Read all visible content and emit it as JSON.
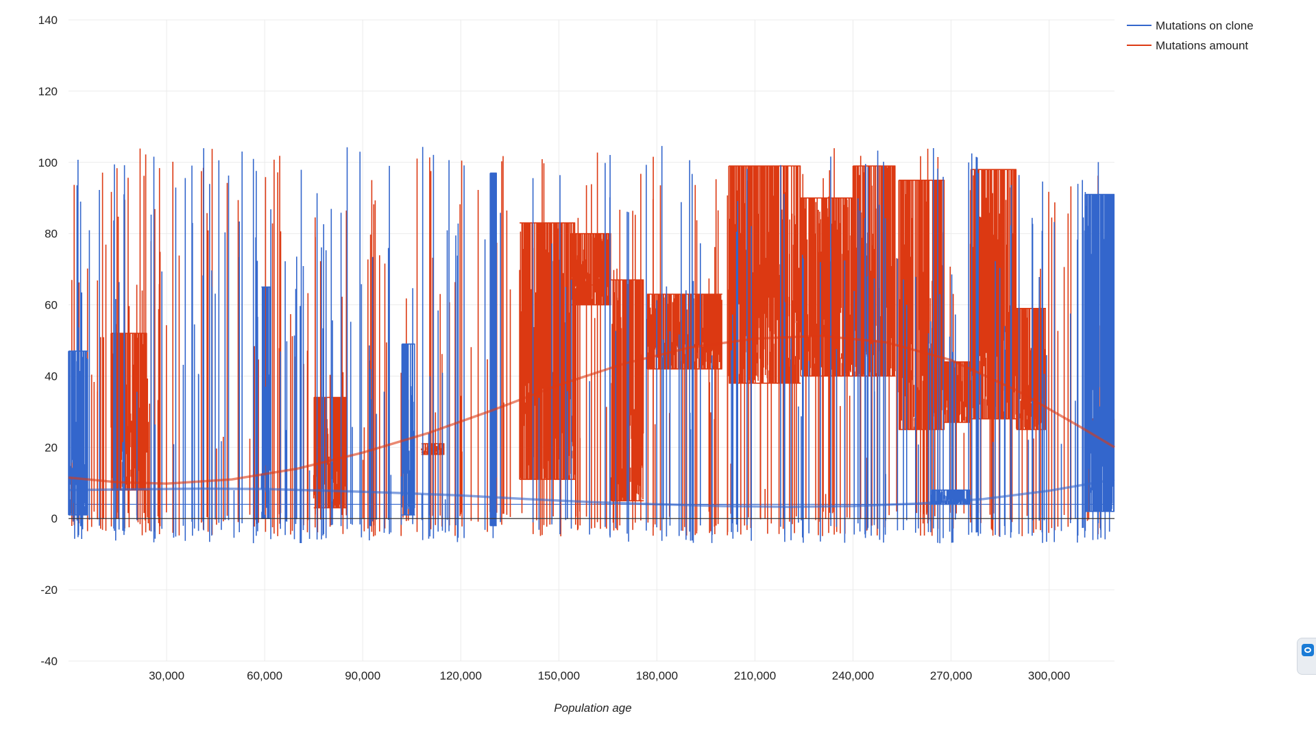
{
  "chart_data": {
    "type": "line",
    "title": "",
    "xlabel": "Population age",
    "ylabel": "",
    "xlim": [
      0,
      320000
    ],
    "ylim": [
      -40,
      140
    ],
    "x_ticks": [
      30000,
      60000,
      90000,
      120000,
      150000,
      180000,
      210000,
      240000,
      270000,
      300000
    ],
    "x_tick_labels": [
      "30,000",
      "60,000",
      "90,000",
      "120,000",
      "150,000",
      "180,000",
      "210,000",
      "240,000",
      "270,000",
      "300,000"
    ],
    "y_ticks": [
      140,
      120,
      100,
      80,
      60,
      40,
      20,
      0,
      -20,
      -40
    ],
    "y_tick_labels": [
      "140",
      "120",
      "100",
      "80",
      "60",
      "40",
      "20",
      "0",
      "-20",
      "-40"
    ],
    "grid": true,
    "legend_position": "top-right",
    "series": [
      {
        "name": "Mutations on clone",
        "color": "#3366cc",
        "baseline": 4,
        "spike_range": [
          -7,
          105
        ],
        "dense_blocks": [
          {
            "x_start": 0,
            "x_end": 6000,
            "low": 1,
            "high": 47
          },
          {
            "x_start": 59000,
            "x_end": 62000,
            "low": 0,
            "high": 65
          },
          {
            "x_start": 102000,
            "x_end": 106000,
            "low": 1,
            "high": 49
          },
          {
            "x_start": 129000,
            "x_end": 131000,
            "low": -2,
            "high": 97
          },
          {
            "x_start": 264000,
            "x_end": 276000,
            "low": 4,
            "high": 8
          },
          {
            "x_start": 311000,
            "x_end": 320000,
            "low": 2,
            "high": 91
          }
        ],
        "trend": [
          [
            0,
            8
          ],
          [
            20000,
            8.2
          ],
          [
            40000,
            8.4
          ],
          [
            60000,
            8.3
          ],
          [
            80000,
            7.8
          ],
          [
            100000,
            7.2
          ],
          [
            120000,
            6.5
          ],
          [
            140000,
            5.5
          ],
          [
            160000,
            4.6
          ],
          [
            180000,
            4
          ],
          [
            200000,
            3.5
          ],
          [
            220000,
            3.3
          ],
          [
            240000,
            3.5
          ],
          [
            260000,
            4.2
          ],
          [
            280000,
            5.5
          ],
          [
            300000,
            7.8
          ],
          [
            320000,
            11
          ]
        ]
      },
      {
        "name": "Mutations amount",
        "color": "#dc3912",
        "spike_range": [
          -5,
          104
        ],
        "dense_blocks": [
          {
            "x_start": 13000,
            "x_end": 24000,
            "low": 8,
            "high": 52
          },
          {
            "x_start": 75000,
            "x_end": 85000,
            "low": 3,
            "high": 34
          },
          {
            "x_start": 108000,
            "x_end": 115000,
            "low": 18,
            "high": 21
          },
          {
            "x_start": 138000,
            "x_end": 155000,
            "low": 11,
            "high": 83
          },
          {
            "x_start": 154000,
            "x_end": 166000,
            "low": 60,
            "high": 80
          },
          {
            "x_start": 166000,
            "x_end": 176000,
            "low": 5,
            "high": 67
          },
          {
            "x_start": 177000,
            "x_end": 200000,
            "low": 42,
            "high": 63
          },
          {
            "x_start": 202000,
            "x_end": 224000,
            "low": 38,
            "high": 99
          },
          {
            "x_start": 224000,
            "x_end": 240000,
            "low": 40,
            "high": 90
          },
          {
            "x_start": 240000,
            "x_end": 253000,
            "low": 40,
            "high": 99
          },
          {
            "x_start": 254000,
            "x_end": 268000,
            "low": 25,
            "high": 95
          },
          {
            "x_start": 268000,
            "x_end": 276000,
            "low": 27,
            "high": 44
          },
          {
            "x_start": 276000,
            "x_end": 290000,
            "low": 28,
            "high": 98
          },
          {
            "x_start": 290000,
            "x_end": 299000,
            "low": 25,
            "high": 59
          },
          {
            "x_start": 313000,
            "x_end": 320000,
            "low": 20,
            "high": 28
          }
        ],
        "trend": [
          [
            0,
            11.5
          ],
          [
            15000,
            10.2
          ],
          [
            30000,
            9.8
          ],
          [
            50000,
            11
          ],
          [
            70000,
            14
          ],
          [
            90000,
            18.5
          ],
          [
            110000,
            24
          ],
          [
            130000,
            30.5
          ],
          [
            150000,
            37.5
          ],
          [
            170000,
            43.5
          ],
          [
            190000,
            48
          ],
          [
            210000,
            50.5
          ],
          [
            230000,
            51.3
          ],
          [
            250000,
            49.5
          ],
          [
            270000,
            44.5
          ],
          [
            290000,
            36
          ],
          [
            310000,
            25.5
          ],
          [
            320000,
            20
          ]
        ]
      }
    ]
  }
}
